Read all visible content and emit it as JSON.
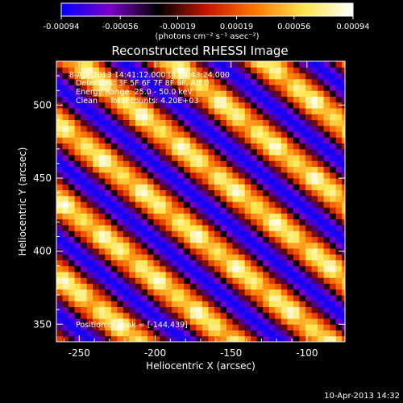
{
  "colorbar": {
    "tick_labels": [
      "-0.00094",
      "-0.00056",
      "-0.00019",
      "0.00019",
      "0.00056",
      "0.00094"
    ],
    "range": [
      -0.00094,
      0.00094
    ],
    "units_label": "(photons cm⁻² s⁻¹ asec⁻²)",
    "colors": [
      "#0000ff",
      "#7b00c8",
      "#000000",
      "#c81400",
      "#ff7800",
      "#ffe650",
      "#ffffff"
    ]
  },
  "chart_data": {
    "type": "heatmap",
    "title": "Reconstructed RHESSI Image",
    "xlabel": "Heliocentric X (arcsec)",
    "ylabel": "Heliocentric Y (arcsec)",
    "xlim": [
      -265,
      -75
    ],
    "ylim": [
      338,
      530
    ],
    "x_ticks": [
      -250,
      -200,
      -150,
      -100
    ],
    "y_ticks": [
      350,
      400,
      450,
      500
    ],
    "grid": false,
    "pixel_size_arcsec": 4,
    "pattern": {
      "description_of_structure": "alternating diagonal bright and dark stripes",
      "stripe_direction_deg": -40,
      "stripe_spacing_arcsec": 40,
      "phase_point": [
        -144,
        439
      ]
    },
    "peak": [
      -144,
      439
    ],
    "annotations": [
      "8-Apr-2013 14:41:12.000 to 14:43:24.000",
      "Detectors: 3F 5F 6F 7F 8F 9F, Att 0",
      "Energy Range: 25.0 - 50.0 keV",
      "Clean     Total counts: 4.20E+03"
    ],
    "peak_label": "Position of Peak = [-144,439]"
  },
  "footer": {
    "timestamp": "10-Apr-2013 14:32"
  }
}
